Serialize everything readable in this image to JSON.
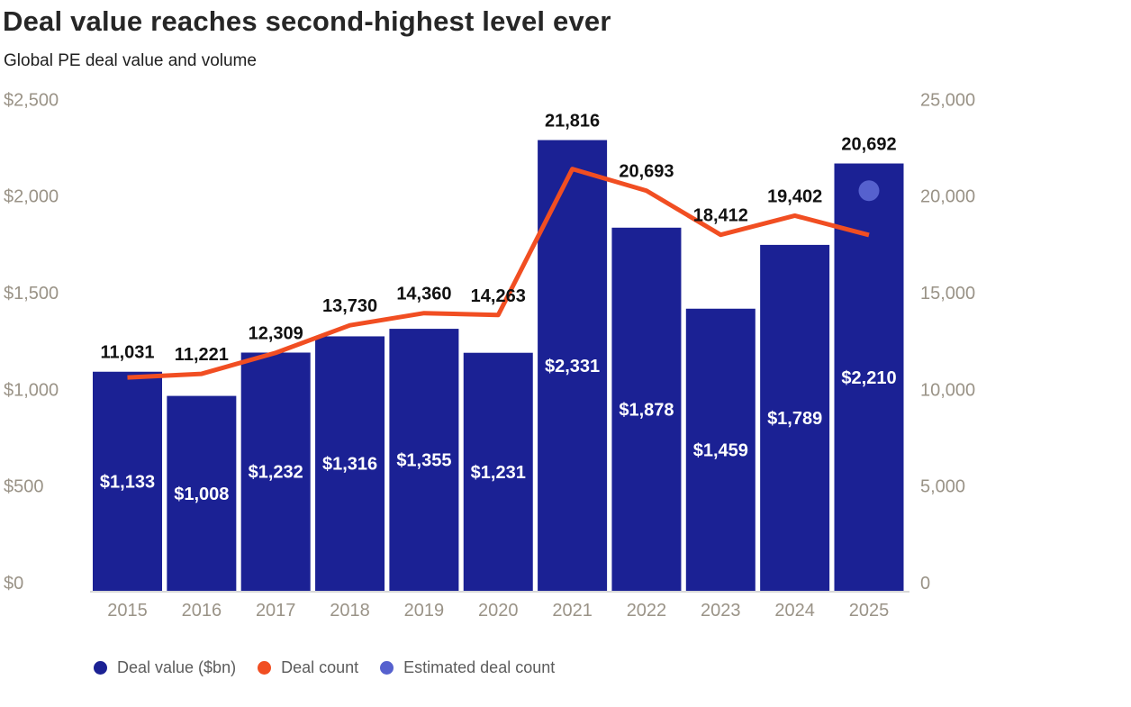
{
  "page": {
    "title": "Deal value reaches second-highest level ever",
    "subtitle": "Global PE deal value and volume"
  },
  "colors": {
    "bar": "#1B2194",
    "line": "#F14E22",
    "estimated_dot": "#5661CE",
    "axis_text": "#9A9387",
    "count_label": "#111111",
    "bar_label": "#FFFFFF",
    "title_text": "#262626",
    "legend_text": "#5C5C5C",
    "baseline": "#D8D8D8"
  },
  "legend": [
    {
      "label": "Deal value ($bn)",
      "color_key": "bar",
      "swatch": "navy-dot"
    },
    {
      "label": "Deal count",
      "color_key": "line",
      "swatch": "orange-dot"
    },
    {
      "label": "Estimated deal count",
      "color_key": "estimated_dot",
      "swatch": "periwinkle-dot"
    }
  ],
  "chart_data": {
    "type": "bar",
    "subtype": "bar+line combo, dual axis",
    "title": "Deal value reaches second-highest level ever",
    "subtitle": "Global PE deal value and volume",
    "categories": [
      "2015",
      "2016",
      "2017",
      "2018",
      "2019",
      "2020",
      "2021",
      "2022",
      "2023",
      "2024",
      "2025"
    ],
    "series": [
      {
        "name": "Deal value ($bn)",
        "type": "bar",
        "axis": "left",
        "values": [
          1133,
          1008,
          1232,
          1316,
          1355,
          1231,
          2331,
          1878,
          1459,
          1789,
          2210
        ],
        "labels": [
          "$1,133",
          "$1,008",
          "$1,232",
          "$1,316",
          "$1,355",
          "$1,231",
          "$2,331",
          "$1,878",
          "$1,459",
          "$1,789",
          "$2,210"
        ]
      },
      {
        "name": "Deal count",
        "type": "line",
        "axis": "right",
        "values": [
          11031,
          11221,
          12309,
          13730,
          14360,
          14263,
          21816,
          20693,
          18412,
          19402,
          18400
        ],
        "labels": [
          "11,031",
          "11,221",
          "12,309",
          "13,730",
          "14,360",
          "14,263",
          "21,816",
          "20,693",
          "18,412",
          "19,402",
          ""
        ],
        "note": "2025 line endpoint (~18,400) is unlabeled in the chart; the labeled 2025 count belongs to the estimated dot"
      },
      {
        "name": "Estimated deal count",
        "type": "point",
        "axis": "right",
        "category": "2025",
        "value": 20692,
        "label": "20,692"
      }
    ],
    "left_axis": {
      "range": [
        0,
        2500
      ],
      "tick_values": [
        0,
        500,
        1000,
        1500,
        2000,
        2500
      ],
      "ticks": [
        "$0",
        "$500",
        "$1,000",
        "$1,500",
        "$2,000",
        "$2,500"
      ]
    },
    "right_axis": {
      "range": [
        0,
        25000
      ],
      "tick_values": [
        0,
        5000,
        10000,
        15000,
        20000,
        25000
      ],
      "ticks": [
        "0",
        "5,000",
        "10,000",
        "15,000",
        "20,000",
        "25,000"
      ]
    },
    "grid": false,
    "legend_position": "bottom-left"
  }
}
